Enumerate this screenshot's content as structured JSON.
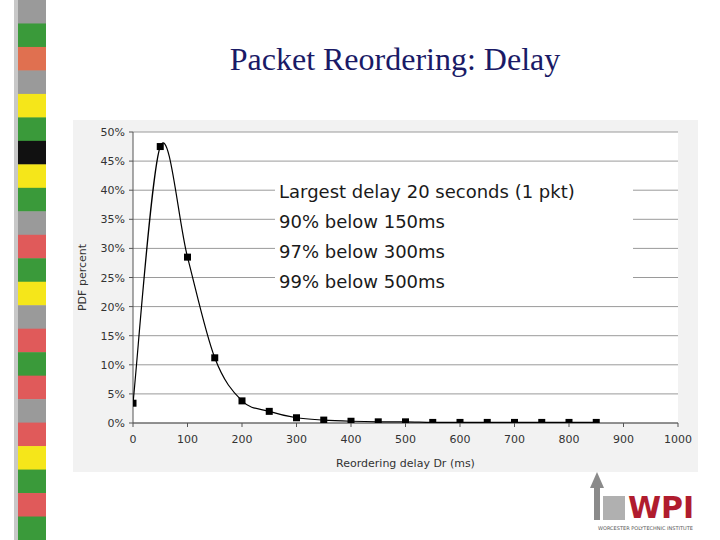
{
  "chart_data": {
    "type": "line",
    "title": "Packet Reordering: Delay",
    "x_label": "Reordering delay Dr (ms)",
    "y_label": "PDF percent",
    "x": [
      0,
      50,
      100,
      150,
      200,
      250,
      300,
      350,
      400,
      450,
      500,
      550,
      600,
      650,
      700,
      750,
      800,
      850
    ],
    "values": [
      3.4,
      47.5,
      28.5,
      11.2,
      3.8,
      2.0,
      0.9,
      0.5,
      0.3,
      0.2,
      0.2,
      0.1,
      0.1,
      0.1,
      0.1,
      0.1,
      0.1,
      0.1
    ],
    "color": "#000000",
    "marker": "square",
    "xlim": [
      0,
      1000
    ],
    "ylim": [
      0,
      50
    ],
    "xticks": [
      0,
      100,
      200,
      300,
      400,
      500,
      600,
      700,
      800,
      900,
      1000
    ],
    "yticks": [
      {
        "value": 0,
        "label": "0%"
      },
      {
        "value": 5,
        "label": "5%"
      },
      {
        "value": 10,
        "label": "10%"
      },
      {
        "value": 15,
        "label": "15%"
      },
      {
        "value": 20,
        "label": "20%"
      },
      {
        "value": 25,
        "label": "25%"
      },
      {
        "value": 30,
        "label": "30%"
      },
      {
        "value": 35,
        "label": "35%"
      },
      {
        "value": 40,
        "label": "40%"
      },
      {
        "value": 45,
        "label": "45%"
      },
      {
        "value": 50,
        "label": "50%"
      }
    ],
    "grid": true,
    "annotations": [
      "Largest delay 20 seconds (1 pkt)",
      "90% below 150ms",
      "97% below 300ms",
      "99% below 500ms"
    ]
  },
  "logo": {
    "text": "WPI",
    "subtitle": "WORCESTER POLYTECHNIC INSTITUTE"
  }
}
